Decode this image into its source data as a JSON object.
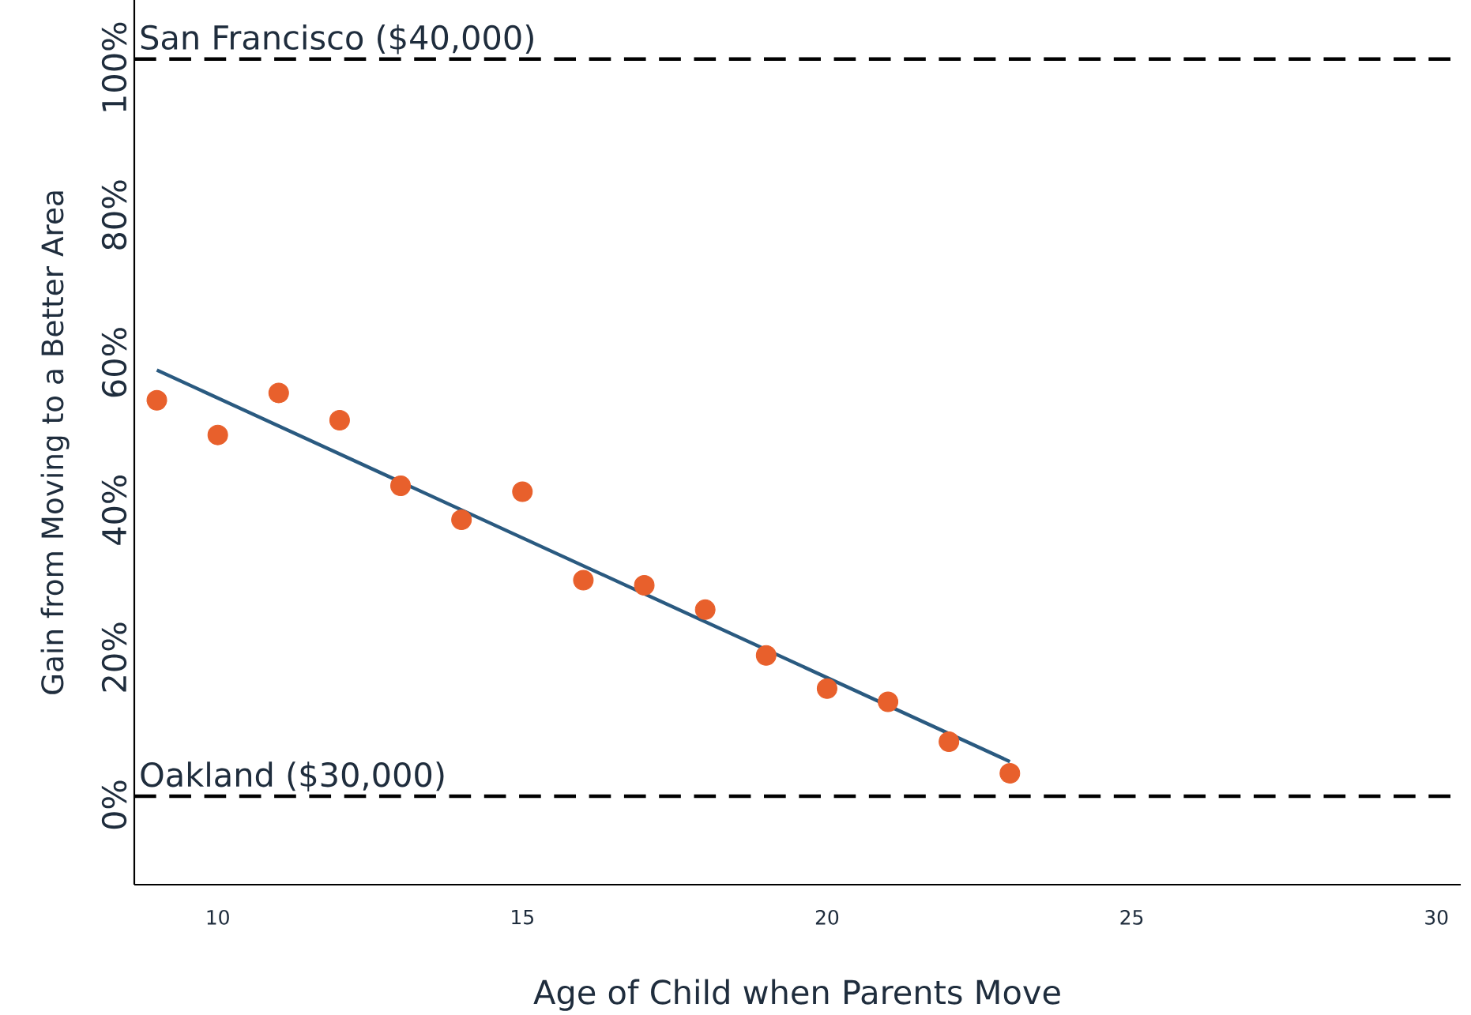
{
  "chart_data": {
    "type": "scatter",
    "xlabel": "Age of Child when Parents Move",
    "ylabel": "Gain from Moving to a Better Area",
    "xlim": [
      8.63,
      30.4
    ],
    "ylim": [
      -12,
      108
    ],
    "xticks": [
      10,
      15,
      20,
      25,
      30
    ],
    "yticks": [
      {
        "value": 0,
        "label": "0%"
      },
      {
        "value": 20,
        "label": "20%"
      },
      {
        "value": 40,
        "label": "40%"
      },
      {
        "value": 60,
        "label": "60%"
      },
      {
        "value": 80,
        "label": "80%"
      },
      {
        "value": 100,
        "label": "100%"
      }
    ],
    "grid": false,
    "marker": "circle",
    "series": [
      {
        "color": "#e8602c",
        "x": [
          9,
          10,
          11,
          12,
          13,
          14,
          15,
          16,
          17,
          18,
          19,
          20,
          21,
          22,
          23
        ],
        "values": [
          53.7,
          49.0,
          54.7,
          51.0,
          42.1,
          37.5,
          41.3,
          29.3,
          28.6,
          25.3,
          19.1,
          14.6,
          12.8,
          7.4,
          3.1
        ]
      },
      {
        "type": "line",
        "color": "#2a5a80",
        "marker": "none",
        "line_style": "solid",
        "x": [
          9,
          23
        ],
        "values": [
          57.8,
          4.7
        ]
      }
    ],
    "ref_lines": [
      {
        "axis": "y",
        "value": 100,
        "label": "San Francisco ($40,000)",
        "color": "#000000",
        "line_style": "dashed"
      },
      {
        "axis": "y",
        "value": 0,
        "label": "Oakland ($30,000)",
        "color": "#000000",
        "line_style": "dashed"
      }
    ]
  }
}
